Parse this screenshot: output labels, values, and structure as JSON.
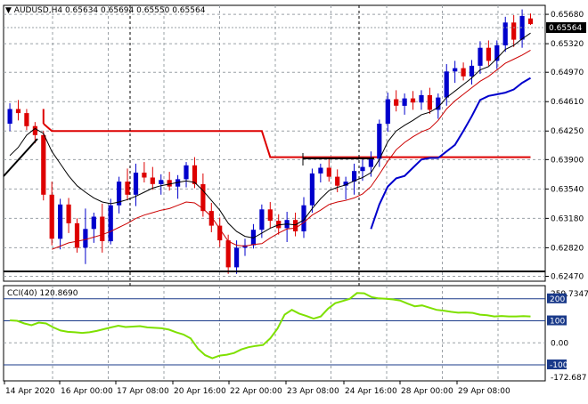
{
  "main_panel": {
    "header": {
      "symbol": "AUDUSD,H4",
      "open": "0.65634",
      "high": "0.65694",
      "low": "0.65550",
      "close": "0.65564"
    },
    "current_price_label": "0.65564",
    "price_ticks": [
      "0.65680",
      "0.65320",
      "0.64970",
      "0.64610",
      "0.64250",
      "0.63900",
      "0.63540",
      "0.63180",
      "0.62820",
      "0.62470"
    ]
  },
  "indicator_panel": {
    "label": "CCI(40) 120.8690",
    "ticks": [
      "259.7347",
      "200",
      "100",
      "0.00",
      "-100",
      "-172.687"
    ]
  },
  "time_axis": {
    "labels": [
      "14 Apr 2020",
      "16 Apr 00:00",
      "17 Apr 08:00",
      "20 Apr 16:00",
      "22 Apr 00:00",
      "23 Apr 08:00",
      "24 Apr 16:00",
      "28 Apr 00:00",
      "29 Apr 08:00"
    ]
  },
  "colors": {
    "bull": "#0000cc",
    "bear": "#dd0000",
    "upper_band": "#dd0000",
    "fast_ma": "#000000",
    "slow_ma": "#cc0000",
    "lower_band": "#0000cc",
    "cci_line": "#7ee000",
    "cci_levels": "#1a3a8a",
    "grid": "#9aa0a6",
    "separator": "#000000"
  },
  "chart_data": [
    {
      "type": "candlestick",
      "title": "AUDUSD,H4",
      "y_range": [
        0.6241,
        0.6579
      ],
      "candles": [
        [
          0.6434,
          0.6459,
          0.6425,
          0.6452
        ],
        [
          0.6452,
          0.6463,
          0.6438,
          0.6447
        ],
        [
          0.6447,
          0.6452,
          0.6426,
          0.6431
        ],
        [
          0.6431,
          0.6436,
          0.641,
          0.642
        ],
        [
          0.642,
          0.6425,
          0.634,
          0.6347
        ],
        [
          0.6347,
          0.6363,
          0.6285,
          0.6293
        ],
        [
          0.6293,
          0.6342,
          0.628,
          0.6335
        ],
        [
          0.6335,
          0.6343,
          0.63,
          0.6312
        ],
        [
          0.6312,
          0.6318,
          0.6276,
          0.6282
        ],
        [
          0.6282,
          0.633,
          0.6262,
          0.6305
        ],
        [
          0.6305,
          0.6325,
          0.6288,
          0.632
        ],
        [
          0.632,
          0.6336,
          0.6276,
          0.629
        ],
        [
          0.629,
          0.6342,
          0.6286,
          0.6334
        ],
        [
          0.6334,
          0.6369,
          0.6324,
          0.6363
        ],
        [
          0.6363,
          0.6379,
          0.634,
          0.6347
        ],
        [
          0.6347,
          0.6385,
          0.6333,
          0.6374
        ],
        [
          0.6374,
          0.6387,
          0.6362,
          0.6368
        ],
        [
          0.6368,
          0.6381,
          0.6353,
          0.636
        ],
        [
          0.636,
          0.6372,
          0.6347,
          0.6365
        ],
        [
          0.6365,
          0.6375,
          0.6352,
          0.6357
        ],
        [
          0.6357,
          0.6371,
          0.6342,
          0.6366
        ],
        [
          0.6366,
          0.6387,
          0.6356,
          0.6383
        ],
        [
          0.6383,
          0.6393,
          0.6355,
          0.636
        ],
        [
          0.636,
          0.6373,
          0.632,
          0.6327
        ],
        [
          0.6327,
          0.6337,
          0.6301,
          0.6309
        ],
        [
          0.6309,
          0.6319,
          0.6283,
          0.6291
        ],
        [
          0.6291,
          0.6298,
          0.625,
          0.6258
        ],
        [
          0.6258,
          0.6291,
          0.625,
          0.6282
        ],
        [
          0.6282,
          0.6293,
          0.6272,
          0.6285
        ],
        [
          0.6285,
          0.6311,
          0.6281,
          0.6304
        ],
        [
          0.6304,
          0.6335,
          0.6294,
          0.6329
        ],
        [
          0.6329,
          0.6338,
          0.6306,
          0.6315
        ],
        [
          0.6315,
          0.6323,
          0.6298,
          0.6306
        ],
        [
          0.6306,
          0.6326,
          0.6289,
          0.6316
        ],
        [
          0.6316,
          0.6325,
          0.6296,
          0.6302
        ],
        [
          0.6302,
          0.6344,
          0.6294,
          0.6334
        ],
        [
          0.6334,
          0.6379,
          0.6325,
          0.6373
        ],
        [
          0.6373,
          0.6385,
          0.6362,
          0.638
        ],
        [
          0.638,
          0.6392,
          0.6363,
          0.6369
        ],
        [
          0.6369,
          0.6378,
          0.635,
          0.6358
        ],
        [
          0.6358,
          0.6369,
          0.6341,
          0.6363
        ],
        [
          0.6363,
          0.6385,
          0.6347,
          0.6376
        ],
        [
          0.6376,
          0.639,
          0.6364,
          0.6381
        ],
        [
          0.6381,
          0.64,
          0.6369,
          0.6391
        ],
        [
          0.6391,
          0.6439,
          0.6381,
          0.6434
        ],
        [
          0.6434,
          0.6472,
          0.6424,
          0.6464
        ],
        [
          0.6464,
          0.6475,
          0.6449,
          0.6456
        ],
        [
          0.6456,
          0.6471,
          0.6445,
          0.6465
        ],
        [
          0.6465,
          0.6474,
          0.6451,
          0.646
        ],
        [
          0.646,
          0.6475,
          0.6451,
          0.6469
        ],
        [
          0.6469,
          0.6478,
          0.6446,
          0.6451
        ],
        [
          0.6451,
          0.6471,
          0.644,
          0.6466
        ],
        [
          0.6466,
          0.6507,
          0.6456,
          0.6498
        ],
        [
          0.6498,
          0.6511,
          0.6484,
          0.6502
        ],
        [
          0.6502,
          0.6509,
          0.6487,
          0.6492
        ],
        [
          0.6492,
          0.6512,
          0.6482,
          0.6505
        ],
        [
          0.6505,
          0.6535,
          0.6495,
          0.6527
        ],
        [
          0.6527,
          0.6536,
          0.6505,
          0.6511
        ],
        [
          0.6511,
          0.6536,
          0.6501,
          0.653
        ],
        [
          0.653,
          0.6565,
          0.6522,
          0.6558
        ],
        [
          0.6558,
          0.6567,
          0.6528,
          0.6537
        ],
        [
          0.6537,
          0.6574,
          0.6527,
          0.6566
        ],
        [
          0.6563,
          0.6569,
          0.6555,
          0.6556
        ]
      ],
      "overlays": {
        "fast_ma": [
          0.6395,
          0.6405,
          0.642,
          0.6428,
          0.6422,
          0.64,
          0.6385,
          0.637,
          0.6358,
          0.635,
          0.6343,
          0.6338,
          0.6336,
          0.6338,
          0.6341,
          0.6345,
          0.635,
          0.6355,
          0.6358,
          0.636,
          0.6362,
          0.6364,
          0.6362,
          0.6352,
          0.634,
          0.6328,
          0.6312,
          0.6302,
          0.6296,
          0.6294,
          0.63,
          0.6306,
          0.631,
          0.6311,
          0.631,
          0.6316,
          0.633,
          0.6342,
          0.6352,
          0.6356,
          0.6359,
          0.6364,
          0.6368,
          0.6374,
          0.639,
          0.6412,
          0.6425,
          0.6432,
          0.6438,
          0.6445,
          0.6448,
          0.6454,
          0.6466,
          0.6474,
          0.6482,
          0.649,
          0.65,
          0.6504,
          0.6514,
          0.6525,
          0.653,
          0.6538,
          0.6545
        ],
        "slow_ma": [
          null,
          null,
          null,
          null,
          null,
          0.628,
          0.6284,
          0.6288,
          0.629,
          0.6292,
          0.6295,
          0.6298,
          0.6302,
          0.6307,
          0.6312,
          0.6318,
          0.6322,
          0.6325,
          0.6328,
          0.633,
          0.6334,
          0.6338,
          0.6337,
          0.633,
          0.632,
          0.6305,
          0.629,
          0.6285,
          0.6284,
          0.6286,
          0.6287,
          0.6294,
          0.63,
          0.6305,
          0.6306,
          0.6313,
          0.6322,
          0.6328,
          0.6335,
          0.6338,
          0.634,
          0.6343,
          0.6348,
          0.6357,
          0.6372,
          0.6388,
          0.6402,
          0.6411,
          0.6418,
          0.6424,
          0.6428,
          0.6438,
          0.6452,
          0.6462,
          0.647,
          0.6478,
          0.6486,
          0.6492,
          0.65,
          0.6508,
          0.6513,
          0.6518,
          0.6524
        ],
        "upper_band": [
          null,
          null,
          null,
          null,
          0.6434,
          0.6425,
          0.6425,
          0.6425,
          0.6425,
          0.6425,
          0.6425,
          0.6425,
          0.6425,
          0.6425,
          0.6425,
          0.6425,
          0.6425,
          0.6425,
          0.6425,
          0.6425,
          0.6425,
          0.6425,
          0.6425,
          0.6425,
          0.6425,
          0.6425,
          0.6425,
          0.6425,
          0.6425,
          0.6425,
          0.6425,
          0.6393,
          0.6393,
          0.6393,
          0.6393,
          0.6393,
          0.6393,
          0.6393,
          0.6393,
          0.6393,
          0.6393,
          0.6393,
          0.6393,
          0.6393,
          0.6393,
          0.6393,
          0.6393,
          0.6393,
          0.6393,
          0.6393,
          0.6393,
          0.6393,
          0.6393,
          0.6393,
          0.6393,
          0.6393,
          0.6393,
          0.6393,
          0.6393,
          0.6393,
          0.6393,
          0.6393,
          0.6393
        ],
        "lower_band": [
          null,
          null,
          null,
          null,
          null,
          null,
          null,
          null,
          null,
          null,
          null,
          null,
          null,
          null,
          null,
          null,
          null,
          null,
          null,
          null,
          null,
          null,
          null,
          null,
          null,
          null,
          null,
          null,
          null,
          null,
          null,
          null,
          null,
          null,
          null,
          null,
          null,
          null,
          null,
          null,
          null,
          null,
          null,
          0.6305,
          0.6335,
          0.6357,
          0.6367,
          0.637,
          0.638,
          0.639,
          0.6392,
          0.6392,
          0.64,
          0.6408,
          0.6425,
          0.6443,
          0.6463,
          0.6468,
          0.647,
          0.6472,
          0.6476,
          0.6484,
          0.649
        ]
      }
    },
    {
      "type": "line",
      "title": "CCI(40) 120.8690",
      "y_range": [
        -172.687,
        259.7347
      ],
      "levels": [
        200,
        100,
        -100
      ],
      "series": [
        {
          "name": "CCI(40)",
          "values": [
            102,
            100,
            88,
            80,
            92,
            88,
            70,
            56,
            50,
            48,
            45,
            48,
            54,
            62,
            70,
            78,
            72,
            74,
            76,
            70,
            68,
            66,
            60,
            48,
            38,
            20,
            -26,
            -56,
            -70,
            -58,
            -54,
            -46,
            -30,
            -20,
            -14,
            -10,
            20,
            64,
            128,
            150,
            133,
            122,
            110,
            120,
            155,
            180,
            190,
            200,
            226,
            225,
            208,
            202,
            200,
            197,
            192,
            178,
            166,
            170,
            160,
            150,
            146,
            141,
            137,
            138,
            136,
            128,
            125,
            120,
            122,
            120,
            120,
            121,
            120
          ]
        }
      ]
    }
  ]
}
